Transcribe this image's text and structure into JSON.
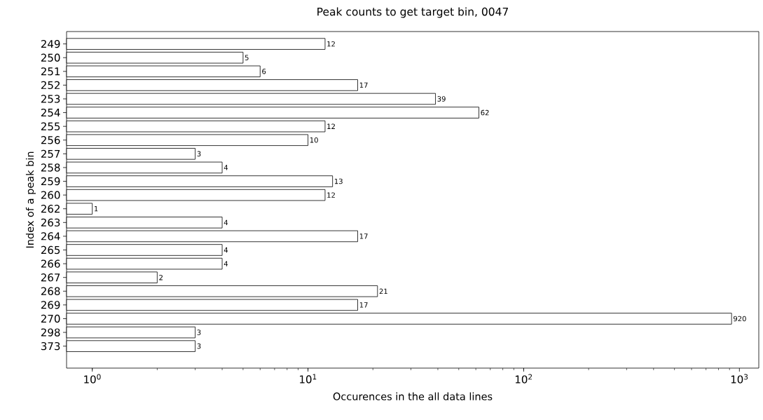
{
  "chart_data": {
    "type": "bar",
    "orientation": "horizontal",
    "title": "Peak counts to get target bin, 0047",
    "xlabel": "Occurences in the all data lines",
    "ylabel": "Index of a peak bin",
    "categories": [
      "249",
      "250",
      "251",
      "252",
      "253",
      "254",
      "255",
      "256",
      "257",
      "258",
      "259",
      "260",
      "262",
      "263",
      "264",
      "265",
      "266",
      "267",
      "268",
      "269",
      "270",
      "298",
      "373"
    ],
    "values": [
      12,
      5,
      6,
      17,
      39,
      62,
      12,
      10,
      3,
      4,
      13,
      12,
      1,
      4,
      17,
      4,
      4,
      2,
      21,
      17,
      920,
      3,
      3
    ],
    "color": "#ffffff",
    "log": "x",
    "data_labels": true,
    "grid": false,
    "xlim": [
      0.76,
      1230
    ],
    "xticks": [
      {
        "value": 1,
        "label": "10$^{0}$"
      },
      {
        "value": 10,
        "label": "10$^{1}$"
      },
      {
        "value": 100,
        "label": "10$^{2}$"
      },
      {
        "value": 1000,
        "label": "10$^{3}$"
      }
    ]
  }
}
